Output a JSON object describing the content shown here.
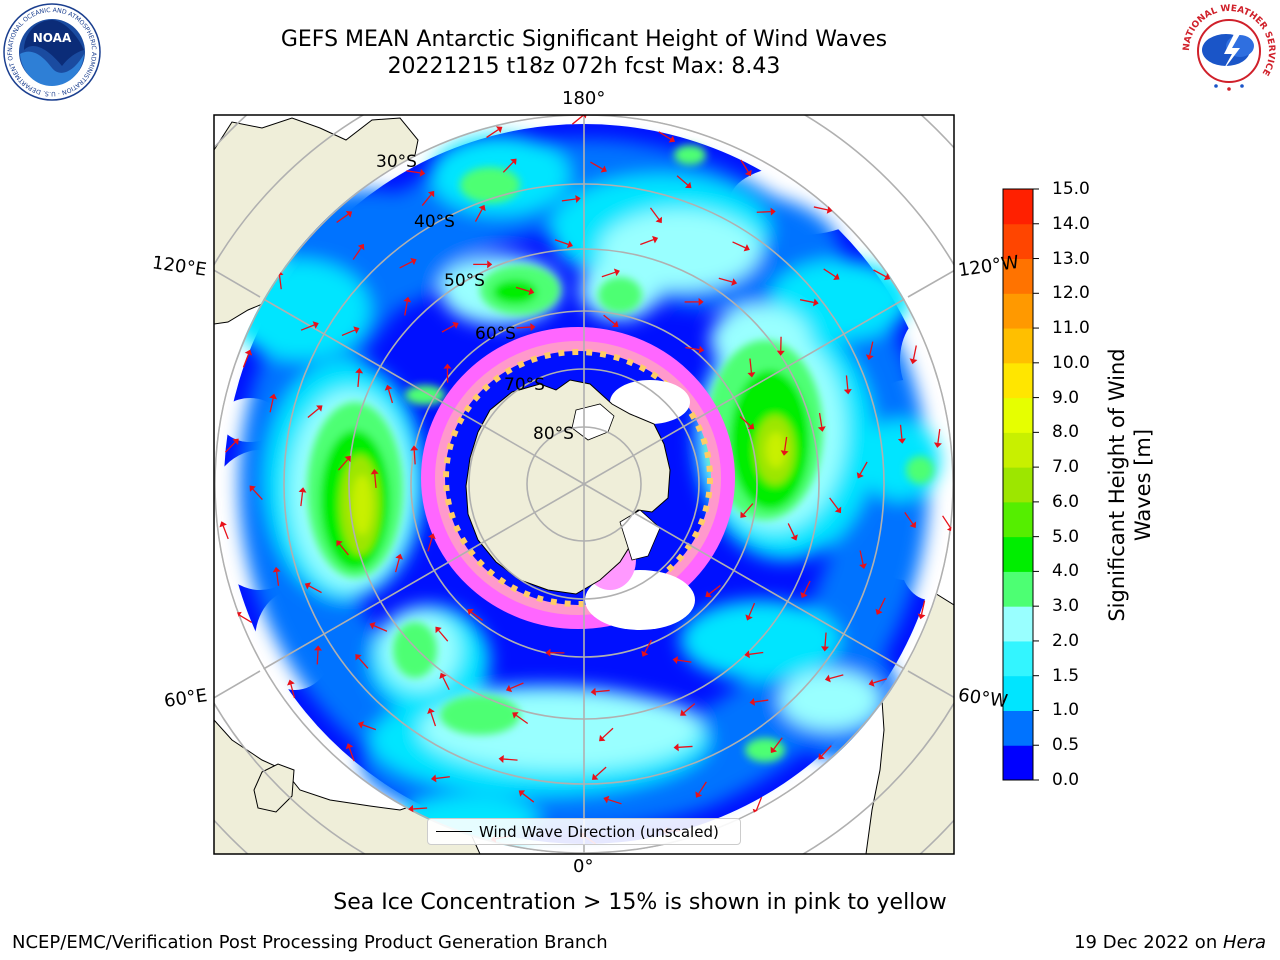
{
  "title": {
    "line1": "GEFS MEAN Antarctic Significant Height of Wind Waves",
    "line2": "20221215 t18z 072h fcst   Max: 8.43"
  },
  "logos": {
    "left": {
      "name": "noaa-logo",
      "text": "NOAA",
      "ring_text": "NATIONAL OCEANIC AND ATMOSPHERIC ADMINISTRATION · U.S. DEPARTMENT OF COMMERCE"
    },
    "right": {
      "name": "nws-logo",
      "ring_text": "NATIONAL WEATHER SERVICE"
    }
  },
  "map": {
    "projection": "south-polar-stereographic",
    "longitude_labels": {
      "top": "180°",
      "bottom": "0°",
      "upper_left": "120°E",
      "upper_right": "120°W",
      "lower_left": "60°E",
      "lower_right": "60°W"
    },
    "latitude_labels": [
      "30°S",
      "40°S",
      "50°S",
      "60°S",
      "70°S",
      "80°S"
    ],
    "land_color": "#efeed9",
    "ocean_no_data_color": "#ffffff",
    "arrow_color": "#e8101a",
    "sea_ice_colors": [
      "#ff66ff",
      "#ff99cc",
      "#ffcc66"
    ],
    "legend": {
      "label": "Wind Wave Direction (unscaled)"
    }
  },
  "colorbar": {
    "label_line1": "Significant Height of Wind",
    "label_line2": "Waves [m]",
    "ticks": [
      "15.0",
      "14.0",
      "13.0",
      "12.0",
      "11.0",
      "10.0",
      "9.0",
      "8.0",
      "7.0",
      "6.0",
      "5.0",
      "4.0",
      "3.0",
      "2.0",
      "1.5",
      "1.0",
      "0.5",
      "0.0"
    ],
    "colors_bottom_to_top": [
      "#0000ff",
      "#0073ff",
      "#00e5ff",
      "#33f5ff",
      "#99ffff",
      "#4dff73",
      "#00ee00",
      "#55ee00",
      "#9de600",
      "#c8f000",
      "#e6ff00",
      "#ffe600",
      "#ffbf00",
      "#ff9900",
      "#ff7300",
      "#ff4500",
      "#ff2000"
    ]
  },
  "caption": "Sea Ice Concentration > 15% is shown in pink to yellow",
  "footer": {
    "left": "NCEP/EMC/Verification Post Processing Product Generation Branch",
    "right_date": "19 Dec 2022 on ",
    "right_host": "Hera"
  }
}
